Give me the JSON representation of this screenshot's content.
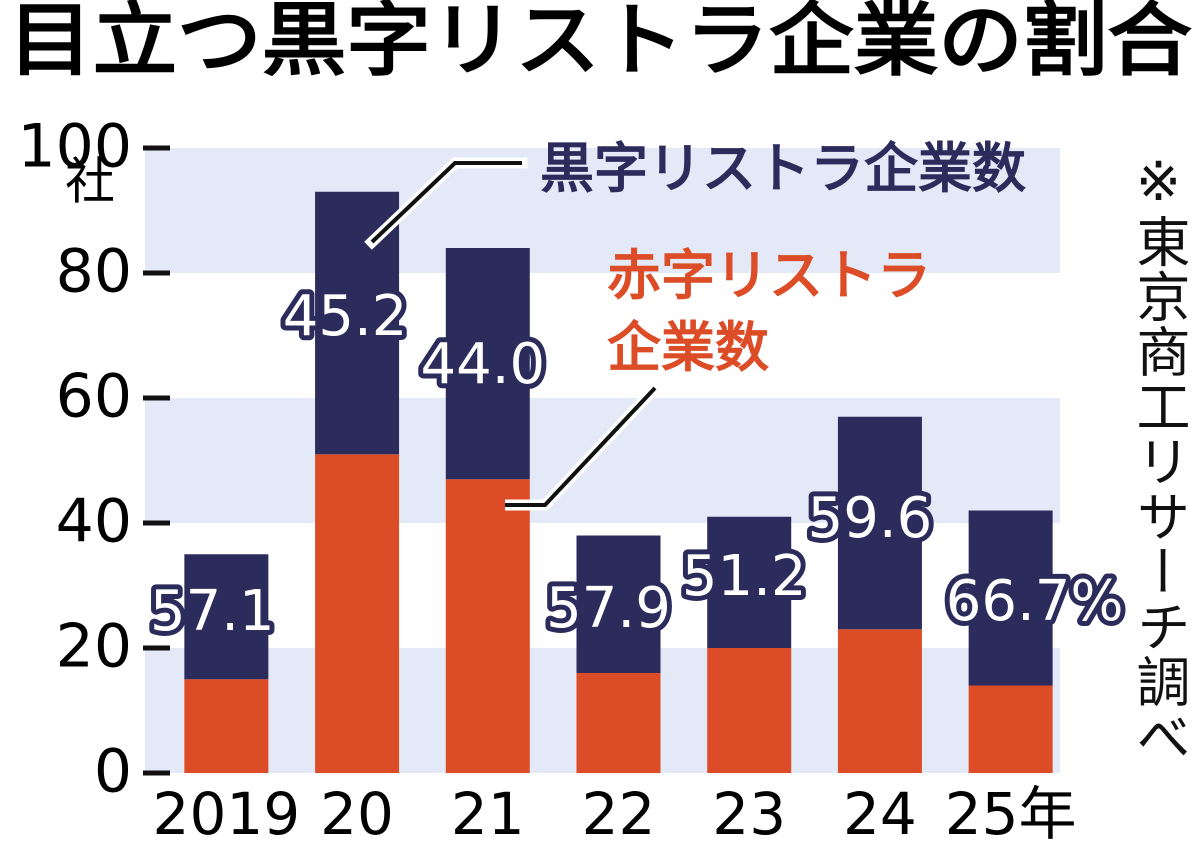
{
  "chart_data": {
    "type": "stacked_bar",
    "title": "目立つ黒字リストラ企業の割合",
    "y_unit": "社",
    "note": "※東京商工リサーチ調べ",
    "categories": [
      "2019",
      "20",
      "21",
      "22",
      "23",
      "24",
      "25年"
    ],
    "series": [
      {
        "name": "赤字リストラ企業数",
        "color": "#dc4d27",
        "values": [
          15,
          51,
          47,
          16,
          20,
          23,
          14
        ]
      },
      {
        "name": "黒字リストラ企業数",
        "color": "#2b2c5c",
        "values": [
          20,
          42,
          37,
          22,
          21,
          34,
          28
        ]
      }
    ],
    "share_of_profitable": {
      "values": [
        57.1,
        45.2,
        44.0,
        57.9,
        51.2,
        59.6,
        66.7
      ],
      "value_labels": [
        "57.1",
        "45.2",
        "44.0",
        "57.9",
        "51.2",
        "59.6",
        "66.7%"
      ]
    },
    "ylim": [
      0,
      100
    ],
    "yticks": [
      0,
      20,
      40,
      60,
      80,
      100
    ],
    "band_color": "#e3e9f6"
  }
}
